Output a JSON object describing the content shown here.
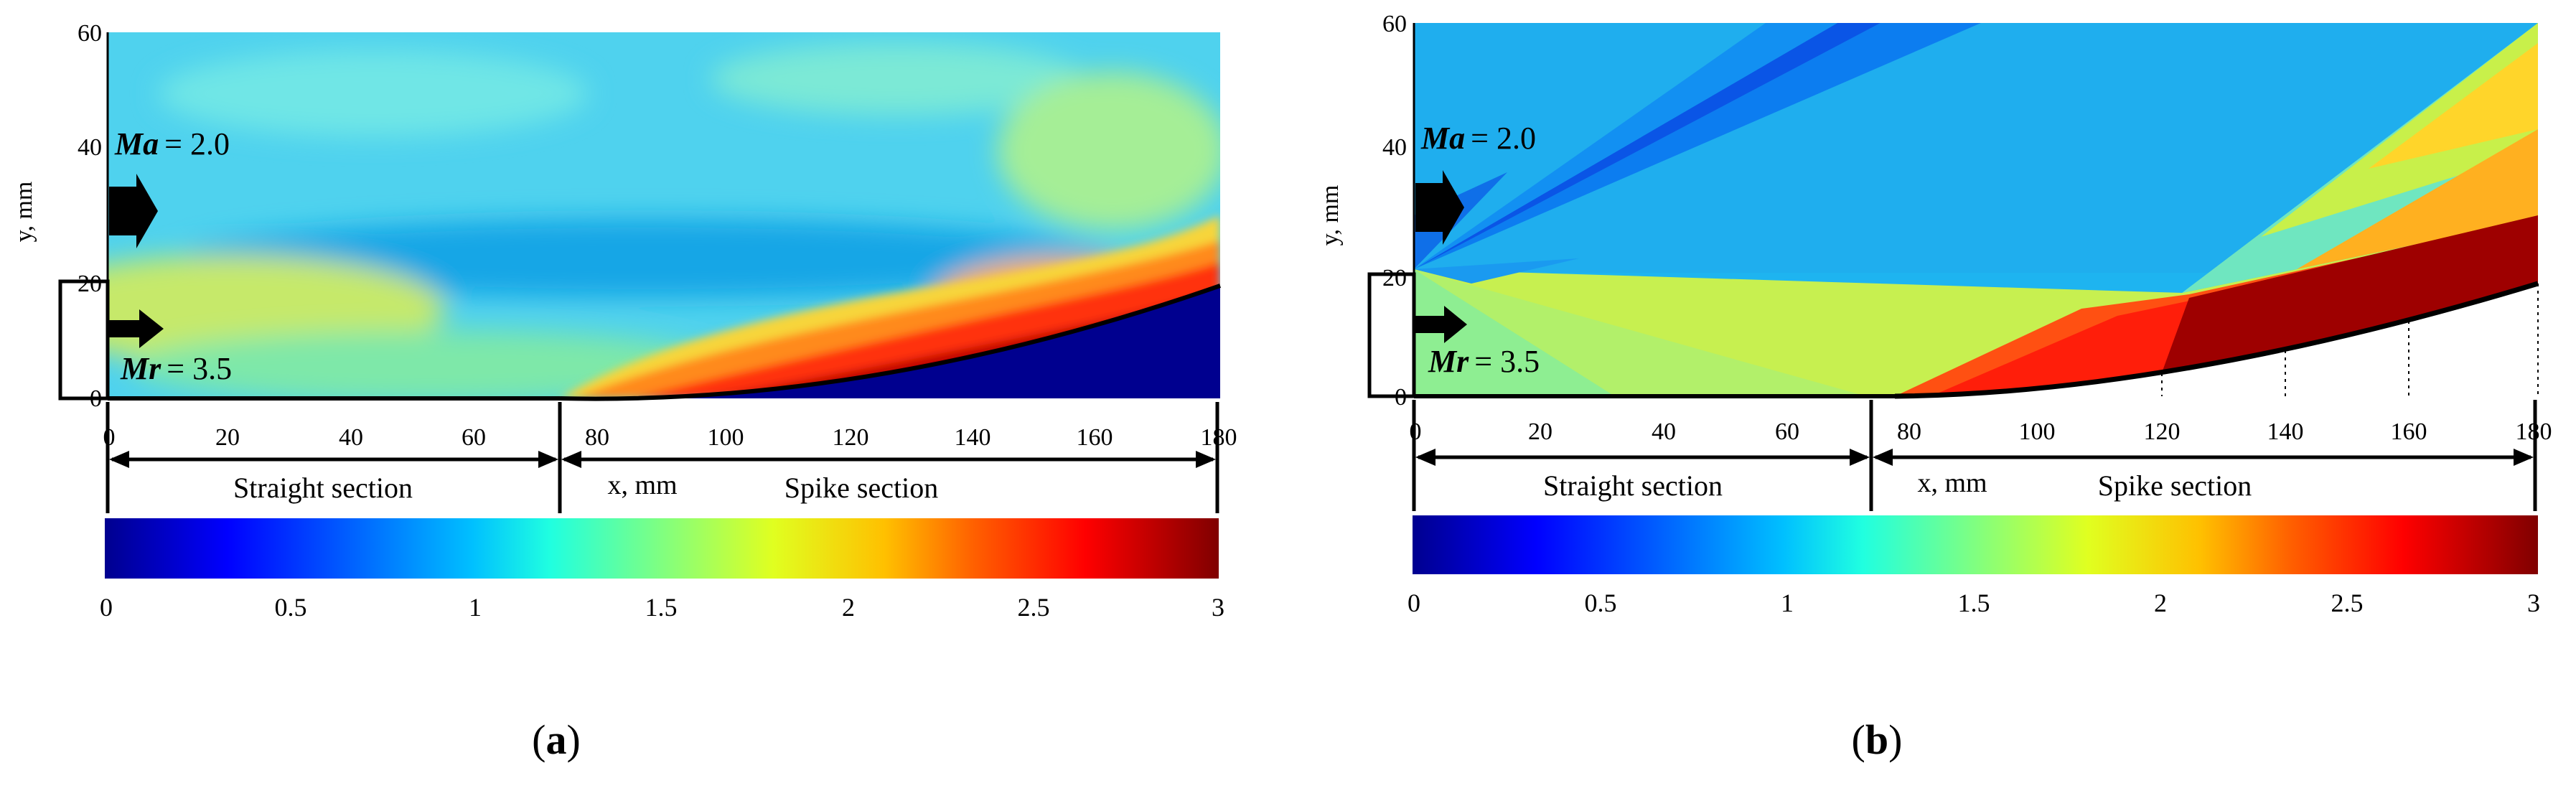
{
  "panels": [
    {
      "id": "a",
      "caption": "a",
      "y_ticks": [
        "0",
        "20",
        "40",
        "60"
      ],
      "x_ticks": [
        "0",
        "20",
        "40",
        "60",
        "80",
        "100",
        "120",
        "140",
        "160",
        "180"
      ],
      "y_label": "y, mm",
      "x_label": "x, mm",
      "ma_label": "Ma",
      "ma_value": "= 2.0",
      "mr_label": "Mr",
      "mr_value": "= 3.5",
      "straight_label": "Straight section",
      "spike_label": "Spike section",
      "colorbar_ticks": [
        "0",
        "0.5",
        "1",
        "1.5",
        "2",
        "2.5",
        "3"
      ]
    },
    {
      "id": "b",
      "caption": "b",
      "y_ticks": [
        "0",
        "20",
        "40",
        "60"
      ],
      "x_ticks": [
        "0",
        "20",
        "40",
        "60",
        "80",
        "100",
        "120",
        "140",
        "160",
        "180"
      ],
      "y_label": "y, mm",
      "x_label": "x, mm",
      "ma_label": "Ma",
      "ma_value": "= 2.0",
      "mr_label": "Mr",
      "mr_value": "= 3.5",
      "straight_label": "Straight section",
      "spike_label": "Spike section",
      "colorbar_ticks": [
        "0",
        "0.5",
        "1",
        "1.5",
        "2",
        "2.5",
        "3"
      ]
    }
  ],
  "colors": {
    "c0": "#00008f",
    "c1": "#0000ff",
    "c2": "#0060ff",
    "c3": "#00c0ff",
    "c4": "#20ffe0",
    "c5": "#80ff80",
    "c6": "#e0ff20",
    "c7": "#ffc000",
    "c8": "#ff6000",
    "c9": "#ff0000",
    "c10": "#800000"
  }
}
